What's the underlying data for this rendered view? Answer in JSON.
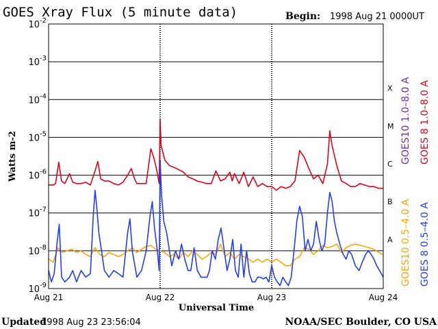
{
  "header": {
    "title": "GOES Xray Flux (5 minute data)",
    "begin_label": "Begin:",
    "begin_value": "1998 Aug 21 0000UT"
  },
  "footer": {
    "updated_label": "Updated",
    "updated_value": "1998 Aug 23 23:56:04",
    "credit": "NOAA/SEC Boulder, CO USA"
  },
  "chart_data": {
    "type": "line",
    "title": "GOES Xray Flux (5 minute data)",
    "xlabel": "Universal Time",
    "ylabel": "Watts m-2",
    "yscale": "log",
    "ylim": [
      1e-09,
      0.01
    ],
    "xlim": [
      0,
      72
    ],
    "x_unit": "hours since 1998 Aug 21 00:00 UT",
    "x_ticks": [
      {
        "x": 0,
        "label": "Aug 21"
      },
      {
        "x": 24,
        "label": "Aug 22"
      },
      {
        "x": 48,
        "label": "Aug 23"
      },
      {
        "x": 72,
        "label": "Aug 24"
      }
    ],
    "y_ticks": [
      {
        "exp": -9,
        "base": "10",
        "sup": "-9"
      },
      {
        "exp": -8,
        "base": "10",
        "sup": "-8"
      },
      {
        "exp": -7,
        "base": "10",
        "sup": "-7"
      },
      {
        "exp": -6,
        "base": "10",
        "sup": "-6"
      },
      {
        "exp": -5,
        "base": "10",
        "sup": "-5"
      },
      {
        "exp": -4,
        "base": "10",
        "sup": "-4"
      },
      {
        "exp": -3,
        "base": "10",
        "sup": "-3"
      },
      {
        "exp": -2,
        "base": "10",
        "sup": "-2"
      }
    ],
    "flare_classes": [
      {
        "label": "A",
        "exp": -8
      },
      {
        "label": "B",
        "exp": -7
      },
      {
        "label": "C",
        "exp": -6
      },
      {
        "label": "M",
        "exp": -5
      },
      {
        "label": "X",
        "exp": -4
      }
    ],
    "grid": true,
    "legend": [
      {
        "label": "GOES10 1.0–8.0 A",
        "color": "#6a2fb0"
      },
      {
        "label": "GOES 8 1.0–8.0 A",
        "color": "#e0001b"
      },
      {
        "label": "GOES10 0.5–4.0 A",
        "color": "#ffa500"
      },
      {
        "label": "GOES 8 0.5–4.0 A",
        "color": "#1f3bff"
      }
    ],
    "series": [
      {
        "name": "GOES 8 1.0–8.0 A",
        "color": "#e0001b",
        "points": [
          [
            0,
            5.5e-07
          ],
          [
            1,
            5.5e-07
          ],
          [
            1.5,
            6e-07
          ],
          [
            2.2,
            2.2e-06
          ],
          [
            2.8,
            7e-07
          ],
          [
            3.5,
            6e-07
          ],
          [
            4.5,
            1.1e-06
          ],
          [
            5.2,
            6.5e-07
          ],
          [
            6,
            6e-07
          ],
          [
            7,
            6e-07
          ],
          [
            8,
            6.5e-07
          ],
          [
            9,
            5.5e-07
          ],
          [
            10,
            1.3e-06
          ],
          [
            10.6,
            2.3e-06
          ],
          [
            11.2,
            8e-07
          ],
          [
            12,
            7e-07
          ],
          [
            13,
            7e-07
          ],
          [
            14,
            6e-07
          ],
          [
            15,
            5.5e-07
          ],
          [
            16,
            6.5e-07
          ],
          [
            17,
            1e-06
          ],
          [
            17.8,
            1.5e-06
          ],
          [
            18.5,
            8e-07
          ],
          [
            19,
            6e-07
          ],
          [
            20,
            6e-07
          ],
          [
            21,
            6e-07
          ],
          [
            22,
            5e-06
          ],
          [
            22.6,
            3e-06
          ],
          [
            23.2,
            1.5e-06
          ],
          [
            23.8,
            6e-07
          ],
          [
            24,
            3e-05
          ],
          [
            24.2,
            6e-06
          ],
          [
            24.6,
            4e-06
          ],
          [
            25,
            2.5e-06
          ],
          [
            26,
            1.8e-06
          ],
          [
            27,
            1.6e-06
          ],
          [
            28,
            1.4e-06
          ],
          [
            29,
            1.2e-06
          ],
          [
            30,
            9e-07
          ],
          [
            31,
            8e-07
          ],
          [
            32,
            7e-07
          ],
          [
            33,
            6.5e-07
          ],
          [
            34,
            6e-07
          ],
          [
            35,
            6e-07
          ],
          [
            36,
            1.3e-06
          ],
          [
            37,
            7e-07
          ],
          [
            38,
            8e-07
          ],
          [
            39,
            1.2e-06
          ],
          [
            39.5,
            7e-07
          ],
          [
            40,
            1.1e-06
          ],
          [
            41,
            6e-07
          ],
          [
            42,
            1.2e-06
          ],
          [
            43,
            5e-07
          ],
          [
            44,
            9e-07
          ],
          [
            45,
            5e-07
          ],
          [
            46,
            6e-07
          ],
          [
            47,
            5e-07
          ],
          [
            48,
            5e-07
          ],
          [
            49,
            4e-07
          ],
          [
            50,
            5e-07
          ],
          [
            51,
            4.5e-07
          ],
          [
            52,
            5e-07
          ],
          [
            53,
            7e-07
          ],
          [
            54,
            4.5e-06
          ],
          [
            55,
            3e-06
          ],
          [
            56,
            1.5e-06
          ],
          [
            57,
            8e-07
          ],
          [
            58,
            1e-06
          ],
          [
            59,
            6e-07
          ],
          [
            60,
            2e-06
          ],
          [
            60.5,
            1.5e-05
          ],
          [
            61,
            6e-06
          ],
          [
            62,
            1.8e-06
          ],
          [
            63,
            7e-07
          ],
          [
            64,
            6e-07
          ],
          [
            65,
            5e-07
          ],
          [
            66,
            5e-07
          ],
          [
            67,
            6e-07
          ],
          [
            68,
            5.5e-07
          ],
          [
            69,
            5e-07
          ],
          [
            70,
            5e-07
          ],
          [
            71,
            4.5e-07
          ],
          [
            72,
            4.5e-07
          ]
        ]
      },
      {
        "name": "GOES10 0.5–4.0 A",
        "color": "#ffa500",
        "points": [
          [
            0,
            6e-09
          ],
          [
            1,
            5e-09
          ],
          [
            2,
            1.2e-08
          ],
          [
            3,
            9e-09
          ],
          [
            4,
            1e-08
          ],
          [
            5,
            1.1e-08
          ],
          [
            6,
            9e-09
          ],
          [
            7,
            1e-08
          ],
          [
            8,
            8e-09
          ],
          [
            9,
            7e-09
          ],
          [
            10,
            1.2e-08
          ],
          [
            11,
            8e-09
          ],
          [
            12,
            7e-09
          ],
          [
            13,
            9e-09
          ],
          [
            14,
            8e-09
          ],
          [
            15,
            7e-09
          ],
          [
            16,
            8e-09
          ],
          [
            17,
            1e-08
          ],
          [
            18,
            1.2e-08
          ],
          [
            19,
            9e-09
          ],
          [
            20,
            1.1e-08
          ],
          [
            21,
            1.3e-08
          ],
          [
            22,
            1.4e-08
          ],
          [
            23,
            1.1e-08
          ],
          [
            24,
            1e-08
          ],
          [
            25,
            9e-09
          ],
          [
            26,
            7e-09
          ],
          [
            27,
            8e-09
          ],
          [
            28,
            6e-09
          ],
          [
            29,
            9e-09
          ],
          [
            30,
            7e-09
          ],
          [
            31,
            1e-08
          ],
          [
            32,
            8e-09
          ],
          [
            33,
            6e-09
          ],
          [
            34,
            7e-09
          ],
          [
            35,
            9e-09
          ],
          [
            36,
            8e-09
          ],
          [
            37,
            1.5e-08
          ],
          [
            38,
            7e-09
          ],
          [
            39,
            9e-09
          ],
          [
            40,
            6e-09
          ],
          [
            41,
            8e-09
          ],
          [
            42,
            7e-09
          ],
          [
            43,
            6e-09
          ],
          [
            44,
            5e-09
          ],
          [
            45,
            6e-09
          ],
          [
            46,
            5e-09
          ],
          [
            47,
            6e-09
          ],
          [
            48,
            5e-09
          ],
          [
            49,
            6e-09
          ],
          [
            50,
            5e-09
          ],
          [
            51,
            4e-09
          ],
          [
            52,
            4e-09
          ],
          [
            53,
            6e-09
          ],
          [
            54,
            7e-09
          ],
          [
            55,
            1.2e-08
          ],
          [
            56,
            1.1e-08
          ],
          [
            57,
            8e-09
          ],
          [
            58,
            1e-08
          ],
          [
            59,
            1.4e-08
          ],
          [
            60,
            1.2e-08
          ],
          [
            61,
            1.3e-08
          ],
          [
            62,
            1.5e-08
          ],
          [
            63,
            9e-09
          ],
          [
            64,
            1.2e-08
          ],
          [
            65,
            1.4e-08
          ],
          [
            66,
            1.5e-08
          ],
          [
            67,
            1.4e-08
          ],
          [
            68,
            1.3e-08
          ],
          [
            69,
            1.2e-08
          ],
          [
            70,
            1.1e-08
          ],
          [
            71,
            9e-09
          ],
          [
            72,
            8e-09
          ]
        ]
      },
      {
        "name": "GOES 8 0.5–4.0 A",
        "color": "#1f3bff",
        "points": [
          [
            0,
            3e-09
          ],
          [
            0.6,
            1.5e-09
          ],
          [
            1.2,
            2.5e-09
          ],
          [
            1.8,
            1.5e-08
          ],
          [
            2.3,
            5e-08
          ],
          [
            2.8,
            2e-09
          ],
          [
            3.5,
            1.5e-09
          ],
          [
            4.5,
            2e-09
          ],
          [
            5.2,
            3e-09
          ],
          [
            6,
            1.5e-09
          ],
          [
            7,
            3e-09
          ],
          [
            8,
            2e-09
          ],
          [
            9,
            2.5e-09
          ],
          [
            9.6,
            8e-08
          ],
          [
            10,
            4e-07
          ],
          [
            10.4,
            1.3e-07
          ],
          [
            10.8,
            3e-08
          ],
          [
            11.5,
            8e-09
          ],
          [
            12,
            3e-09
          ],
          [
            13,
            2e-09
          ],
          [
            14,
            3e-09
          ],
          [
            15,
            2.5e-09
          ],
          [
            16,
            2e-09
          ],
          [
            17,
            3e-08
          ],
          [
            17.5,
            7e-08
          ],
          [
            18,
            1e-08
          ],
          [
            19,
            2e-09
          ],
          [
            20,
            3e-09
          ],
          [
            21,
            1e-08
          ],
          [
            21.8,
            8e-08
          ],
          [
            22.3,
            2e-07
          ],
          [
            22.8,
            4e-08
          ],
          [
            23.4,
            1e-08
          ],
          [
            23.8,
            3e-09
          ],
          [
            24,
            2.5e-06
          ],
          [
            24.3,
            3e-07
          ],
          [
            24.8,
            6e-08
          ],
          [
            25.4,
            3e-08
          ],
          [
            26,
            1e-08
          ],
          [
            26.5,
            4e-09
          ],
          [
            27.3,
            1e-08
          ],
          [
            28,
            6e-09
          ],
          [
            28.6,
            1.5e-08
          ],
          [
            29.3,
            6e-09
          ],
          [
            30,
            3e-09
          ],
          [
            30.6,
            3e-09
          ],
          [
            31.3,
            1.2e-08
          ],
          [
            32,
            3e-09
          ],
          [
            32.8,
            2e-09
          ],
          [
            33.5,
            2e-09
          ],
          [
            34.1,
            2e-09
          ],
          [
            34.6,
            3e-09
          ],
          [
            35.2,
            1e-08
          ],
          [
            35.9,
            6e-09
          ],
          [
            36.5,
            2e-08
          ],
          [
            37.1,
            4e-08
          ],
          [
            37.8,
            1e-08
          ],
          [
            38.4,
            3e-09
          ],
          [
            39,
            6e-09
          ],
          [
            39.6,
            2e-08
          ],
          [
            40.2,
            3e-09
          ],
          [
            40.8,
            2e-09
          ],
          [
            41.4,
            1.5e-08
          ],
          [
            42,
            2e-09
          ],
          [
            42.6,
            1e-08
          ],
          [
            43.2,
            2.5e-09
          ],
          [
            43.8,
            1.5e-09
          ],
          [
            44.4,
            1.5e-09
          ],
          [
            45,
            2e-09
          ],
          [
            45.6,
            2e-09
          ],
          [
            46.2,
            1.8e-09
          ],
          [
            46.8,
            2e-09
          ],
          [
            47.4,
            1.5e-09
          ],
          [
            48,
            4e-09
          ],
          [
            48.6,
            2e-09
          ],
          [
            49.2,
            1.5e-09
          ],
          [
            49.8,
            1.2e-09
          ],
          [
            50.4,
            2e-09
          ],
          [
            51,
            1.5e-09
          ],
          [
            51.6,
            1.2e-09
          ],
          [
            52.2,
            2e-09
          ],
          [
            52.8,
            1e-08
          ],
          [
            53.4,
            6e-08
          ],
          [
            54,
            1.5e-07
          ],
          [
            54.6,
            8e-08
          ],
          [
            55.2,
            1e-08
          ],
          [
            55.8,
            2e-08
          ],
          [
            56.4,
            1e-08
          ],
          [
            57,
            1.5e-08
          ],
          [
            57.6,
            6e-08
          ],
          [
            58.2,
            2e-08
          ],
          [
            58.8,
            1e-08
          ],
          [
            59.4,
            1.5e-08
          ],
          [
            60,
            1e-07
          ],
          [
            60.5,
            3.5e-07
          ],
          [
            61,
            2e-07
          ],
          [
            61.5,
            6e-08
          ],
          [
            62,
            3e-08
          ],
          [
            62.8,
            1.3e-08
          ],
          [
            63.4,
            8e-09
          ],
          [
            64,
            6e-09
          ],
          [
            64.6,
            1e-08
          ],
          [
            65.2,
            8e-09
          ],
          [
            66,
            4e-09
          ],
          [
            66.8,
            3e-09
          ],
          [
            67.5,
            5e-09
          ],
          [
            68.2,
            8e-09
          ],
          [
            68.8,
            1e-08
          ],
          [
            69.4,
            8e-09
          ],
          [
            70,
            6e-09
          ],
          [
            70.6,
            4e-09
          ],
          [
            71.2,
            3e-09
          ],
          [
            72,
            2e-09
          ]
        ]
      }
    ]
  }
}
